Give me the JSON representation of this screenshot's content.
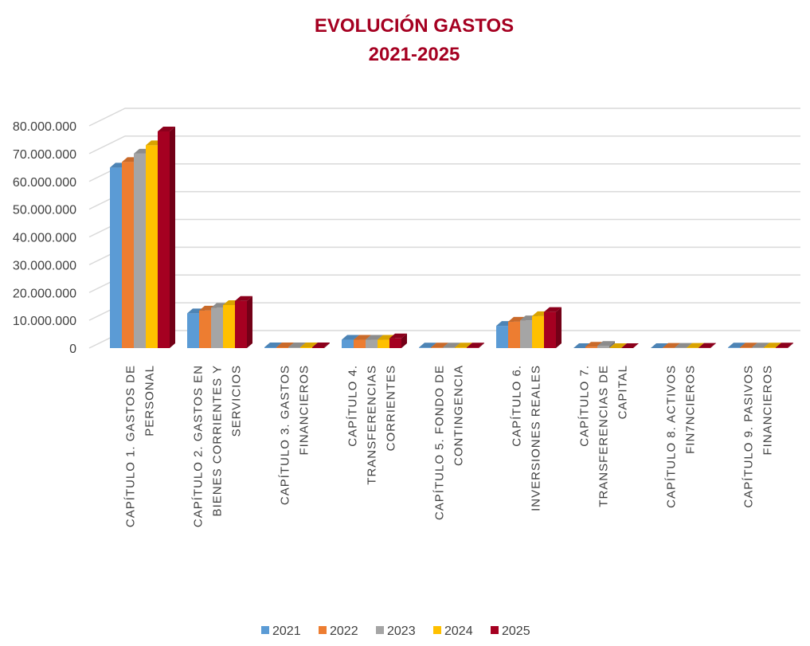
{
  "chart_data": {
    "type": "bar3d",
    "title": [
      "EVOLUCIÓN GASTOS",
      "2021-2025"
    ],
    "categories": [
      "CAPÍTULO 1. GASTOS DE PERSONAL",
      "CAPÍTULO 2. GASTOS EN BIENES CORRIENTES Y SERVICIOS",
      "CAPÍTULO 3. GASTOS FINANCIEROS",
      "CAPÍTULO 4. TRANSFERENCIAS CORRIENTES",
      "CAPÍTULO 5. FONDO DE CONTINGENCIA",
      "CAPÍTULO 6. INVERSIONES REALES",
      "CAPÍTULO 7. TRANSFERENCIAS DE CAPITAL",
      "CAPÍTULO 8.  ACTIVOS FIN7NCIEROS",
      "CAPÍTULO 9.  PASIVOS FINANCIEROS"
    ],
    "series": [
      {
        "name": "2021",
        "color": "#5b9bd5",
        "values": [
          65000000,
          12500000,
          300000,
          3000000,
          200000,
          8000000,
          0,
          0,
          200000
        ]
      },
      {
        "name": "2022",
        "color": "#ed7d31",
        "values": [
          67000000,
          13500000,
          300000,
          3000000,
          200000,
          9500000,
          500000,
          100000,
          200000
        ]
      },
      {
        "name": "2023",
        "color": "#a5a5a5",
        "values": [
          70000000,
          14500000,
          300000,
          3000000,
          200000,
          10000000,
          800000,
          100000,
          200000
        ]
      },
      {
        "name": "2024",
        "color": "#ffc000",
        "values": [
          73000000,
          15500000,
          300000,
          3000000,
          200000,
          11500000,
          0,
          100000,
          200000
        ]
      },
      {
        "name": "2025",
        "color": "#a50021",
        "values": [
          78000000,
          17000000,
          300000,
          3500000,
          200000,
          13000000,
          0,
          100000,
          200000
        ]
      }
    ],
    "ylim": [
      0,
      80000000
    ],
    "yticks": [
      0,
      {
        "value": 10000000,
        "label": "10.000.000"
      },
      {
        "value": 20000000,
        "label": "20.000.000"
      },
      {
        "value": 30000000,
        "label": "30.000.000"
      },
      {
        "value": 40000000,
        "label": "40.000.000"
      },
      {
        "value": 50000000,
        "label": "50.000.000"
      },
      {
        "value": 60000000,
        "label": "60.000.000"
      },
      {
        "value": 70000000,
        "label": "70.000.000"
      },
      {
        "value": 80000000,
        "label": "80.000.000"
      }
    ],
    "grid": true,
    "legend": "bottom"
  }
}
